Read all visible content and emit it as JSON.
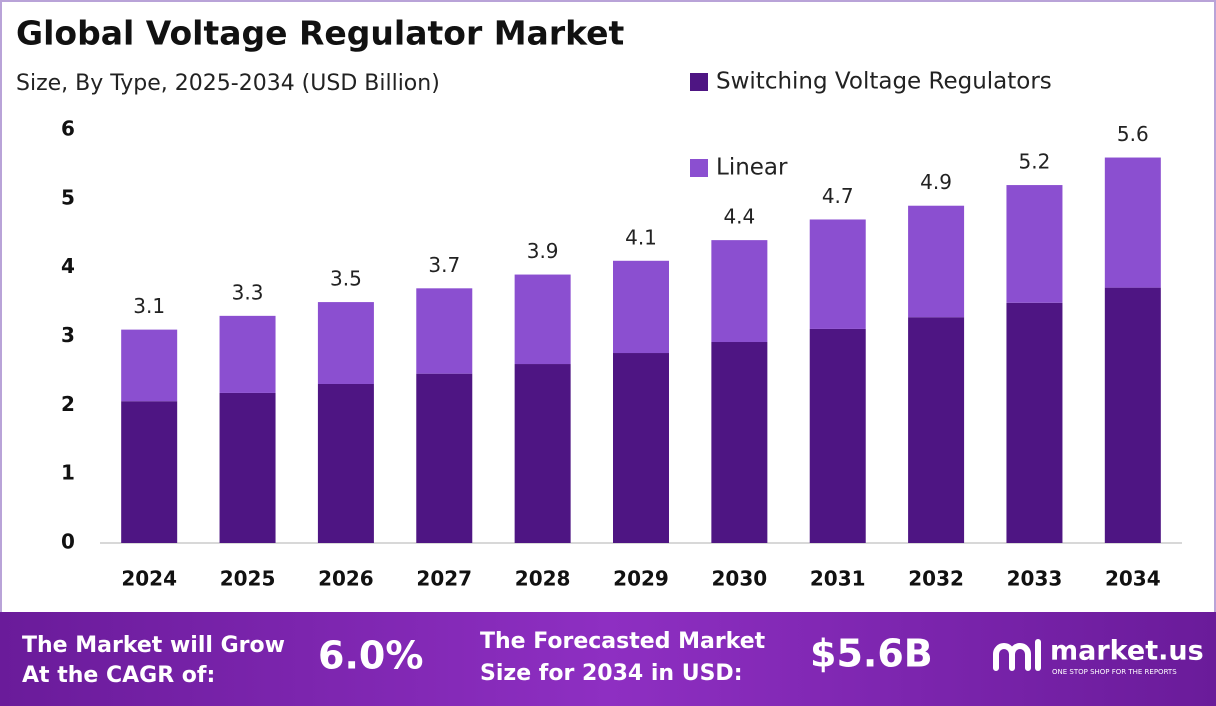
{
  "chart_data": {
    "type": "stacked-bar",
    "title": "Global Voltage Regulator Market",
    "subtitle": "Size, By Type, 2025-2034 (USD Billion)",
    "categories": [
      "2024",
      "2025",
      "2026",
      "2027",
      "2028",
      "2029",
      "2030",
      "2031",
      "2032",
      "2033",
      "2034"
    ],
    "series": [
      {
        "name": "Switching Voltage Regulators",
        "color": "#4e1583",
        "values": [
          2.06,
          2.18,
          2.31,
          2.46,
          2.6,
          2.76,
          2.92,
          3.11,
          3.28,
          3.49,
          3.71
        ]
      },
      {
        "name": "Linear",
        "color": "#8b4fd0",
        "values": [
          1.04,
          1.12,
          1.19,
          1.24,
          1.3,
          1.34,
          1.48,
          1.59,
          1.62,
          1.71,
          1.89
        ]
      }
    ],
    "totals": [
      3.1,
      3.3,
      3.5,
      3.7,
      3.9,
      4.1,
      4.4,
      4.7,
      4.9,
      5.2,
      5.6
    ],
    "ylim": [
      0,
      6
    ],
    "yticks": [
      0,
      1,
      2,
      3,
      4,
      5,
      6
    ],
    "grid": false
  },
  "footer": {
    "cagr_label": [
      "The Market will Grow",
      "At the CAGR of:"
    ],
    "cagr_value": "6.0%",
    "forecast_label": [
      "The Forecasted Market",
      "Size for 2034 in USD:"
    ],
    "forecast_value": "$5.6B",
    "brand": "market.us",
    "tagline": "ONE STOP SHOP FOR THE REPORTS"
  }
}
